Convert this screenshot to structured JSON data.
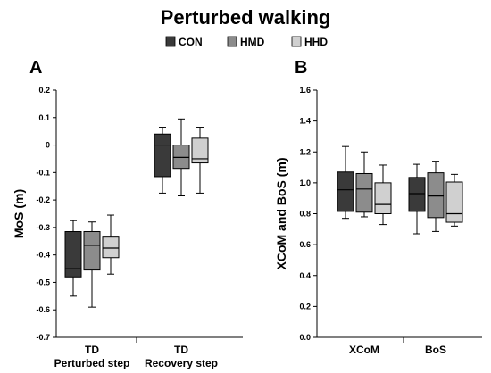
{
  "title": "Perturbed walking",
  "legend": [
    {
      "label": "CON",
      "color": "#3a3a3a"
    },
    {
      "label": "HMD",
      "color": "#8c8c8c"
    },
    {
      "label": "HHD",
      "color": "#d0d0d0"
    }
  ],
  "chart_data": [
    {
      "panel": "A",
      "type": "box",
      "ylabel": "MoS (m)",
      "ylim": [
        -0.7,
        0.2
      ],
      "yticks": [
        "0.2",
        "0.1",
        "0",
        "-0.1",
        "-0.2",
        "-0.3",
        "-0.4",
        "-0.5",
        "-0.6",
        "-0.7"
      ],
      "ytick_values": [
        0.2,
        0.1,
        0,
        -0.1,
        -0.2,
        -0.3,
        -0.4,
        -0.5,
        -0.6,
        -0.7
      ],
      "zero_line": true,
      "groups": [
        {
          "label": "TD",
          "sublabel": "Perturbed step",
          "boxes": [
            {
              "series": "CON",
              "min": -0.55,
              "q1": -0.48,
              "median": -0.45,
              "q3": -0.315,
              "max": -0.275
            },
            {
              "series": "HMD",
              "min": -0.59,
              "q1": -0.455,
              "median": -0.365,
              "q3": -0.315,
              "max": -0.28
            },
            {
              "series": "HHD",
              "min": -0.47,
              "q1": -0.41,
              "median": -0.375,
              "q3": -0.335,
              "max": -0.255
            }
          ]
        },
        {
          "label": "TD",
          "sublabel": "Recovery step",
          "boxes": [
            {
              "series": "CON",
              "min": -0.175,
              "q1": -0.115,
              "median": 0.0,
              "q3": 0.04,
              "max": 0.065
            },
            {
              "series": "HMD",
              "min": -0.185,
              "q1": -0.085,
              "median": -0.045,
              "q3": 0.0,
              "max": 0.095
            },
            {
              "series": "HHD",
              "min": -0.175,
              "q1": -0.065,
              "median": -0.05,
              "q3": 0.025,
              "max": 0.065
            }
          ]
        }
      ]
    },
    {
      "panel": "B",
      "type": "box",
      "ylabel": "XCoM and BoS (m)",
      "ylim": [
        0.0,
        1.6
      ],
      "yticks": [
        "1.6",
        "1.4",
        "1.2",
        "1.0",
        "0.8",
        "0.6",
        "0.4",
        "0.2",
        "0.0"
      ],
      "ytick_values": [
        1.6,
        1.4,
        1.2,
        1.0,
        0.8,
        0.6,
        0.4,
        0.2,
        0.0
      ],
      "zero_line": false,
      "groups": [
        {
          "label": "XCoM",
          "sublabel": "",
          "boxes": [
            {
              "series": "CON",
              "min": 0.77,
              "q1": 0.815,
              "median": 0.955,
              "q3": 1.07,
              "max": 1.235
            },
            {
              "series": "HMD",
              "min": 0.78,
              "q1": 0.81,
              "median": 0.96,
              "q3": 1.06,
              "max": 1.2
            },
            {
              "series": "HHD",
              "min": 0.73,
              "q1": 0.8,
              "median": 0.86,
              "q3": 1.0,
              "max": 1.115
            }
          ]
        },
        {
          "label": "BoS",
          "sublabel": "",
          "boxes": [
            {
              "series": "CON",
              "min": 0.67,
              "q1": 0.815,
              "median": 0.93,
              "q3": 1.035,
              "max": 1.12
            },
            {
              "series": "HMD",
              "min": 0.685,
              "q1": 0.775,
              "median": 0.915,
              "q3": 1.065,
              "max": 1.14
            },
            {
              "series": "HHD",
              "min": 0.72,
              "q1": 0.745,
              "median": 0.8,
              "q3": 1.005,
              "max": 1.055
            }
          ]
        }
      ]
    }
  ]
}
